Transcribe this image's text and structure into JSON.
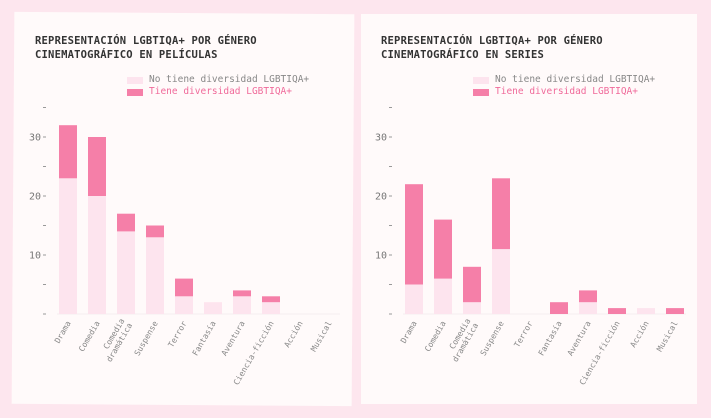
{
  "colors": {
    "no_diversity": "#fde4ee",
    "diversity": "#f57fa8",
    "legend_no_text": "#888888",
    "legend_yes_text": "#f06a9a"
  },
  "legend": {
    "no": "No tiene diversidad LGBTIQA+",
    "yes": "Tiene diversidad LGBTIQA+"
  },
  "chart_data": [
    {
      "type": "bar",
      "stacked": true,
      "title": "REPRESENTACIÓN LGBTIQA+ POR GÉNERO CINEMATOGRÁFICO EN PELÍCULAS",
      "title_lines": [
        "REPRESENTACIÓN LGBTIQA+ POR GÉNERO",
        "CINEMATOGRÁFICO EN PELÍCULAS"
      ],
      "categories": [
        "Drama",
        "Comedia",
        "Comedia dramática",
        "Suspense",
        "Terror",
        "Fantasía",
        "Aventura",
        "Ciencia-ficción",
        "Acción",
        "Musical"
      ],
      "series": [
        {
          "name": "No tiene diversidad LGBTIQA+",
          "values": [
            23,
            20,
            14,
            13,
            3,
            2,
            3,
            2,
            0,
            0
          ]
        },
        {
          "name": "Tiene diversidad LGBTIQA+",
          "values": [
            9,
            10,
            3,
            2,
            3,
            0,
            1,
            1,
            0,
            0
          ]
        }
      ],
      "yticks": [
        "10",
        "20",
        "30"
      ],
      "ylim": [
        0,
        35
      ],
      "legend_position": "top-right"
    },
    {
      "type": "bar",
      "stacked": true,
      "title": "REPRESENTACIÓN LGBTIQA+ POR GÉNERO CINEMATOGRÁFICO EN SERIES",
      "title_lines": [
        "REPRESENTACIÓN LGBTIQA+ POR GÉNERO",
        "CINEMATOGRÁFICO EN SERIES"
      ],
      "categories": [
        "Drama",
        "Comedia",
        "Comedia dramática",
        "Suspense",
        "Terror",
        "Fantasía",
        "Aventura",
        "Ciencia-ficción",
        "Acción",
        "Musical"
      ],
      "series": [
        {
          "name": "No tiene diversidad LGBTIQA+",
          "values": [
            5,
            6,
            2,
            11,
            0,
            0,
            2,
            0,
            1,
            0
          ]
        },
        {
          "name": "Tiene diversidad LGBTIQA+",
          "values": [
            17,
            10,
            6,
            12,
            0,
            2,
            2,
            1,
            0,
            1
          ]
        }
      ],
      "yticks": [
        "10",
        "20",
        "30"
      ],
      "ylim": [
        0,
        35
      ],
      "legend_position": "top-right"
    }
  ]
}
